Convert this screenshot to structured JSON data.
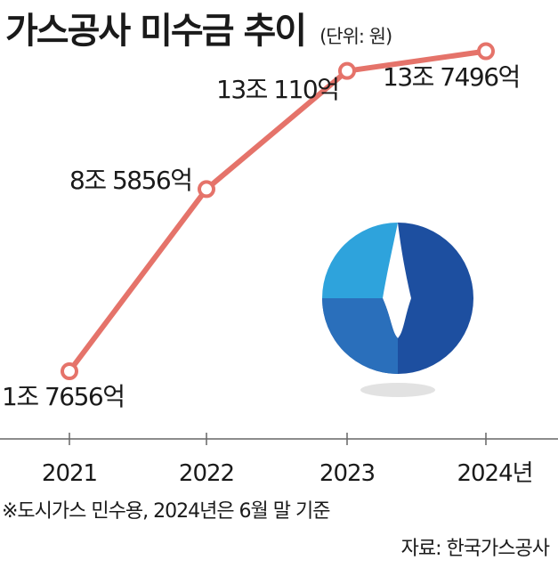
{
  "header": {
    "title": "가스공사 미수금 추이",
    "unit": "(단위: 원)"
  },
  "chart_data": {
    "type": "line",
    "categories": [
      "2021",
      "2022",
      "2023",
      "2024년"
    ],
    "values": [
      1.7656,
      8.5856,
      13.011,
      13.7496
    ],
    "value_unit": "조 원",
    "data_labels": [
      "1조 7656억",
      "8조 5856억",
      "13조 110억",
      "13조 7496억"
    ],
    "grid": false,
    "legend": "none",
    "colors": {
      "line": "#e5736a",
      "logo_light": "#2ea3dc",
      "logo_dark": "#1d4fa0"
    }
  },
  "footer": {
    "note": "※도시가스 민수용, 2024년은 6월 말 기준",
    "source": "자료: 한국가스공사"
  }
}
